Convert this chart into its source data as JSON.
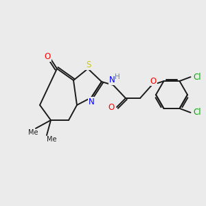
{
  "background_color": "#ebebeb",
  "bond_color": "#1a1a1a",
  "atom_colors": {
    "O": "#ff0000",
    "S": "#cccc00",
    "N": "#0000ff",
    "H": "#708090",
    "Cl": "#00aa00",
    "C": "#1a1a1a"
  },
  "figsize": [
    3.0,
    3.0
  ],
  "dpi": 100,
  "lw": 1.4,
  "fs": 8.5
}
